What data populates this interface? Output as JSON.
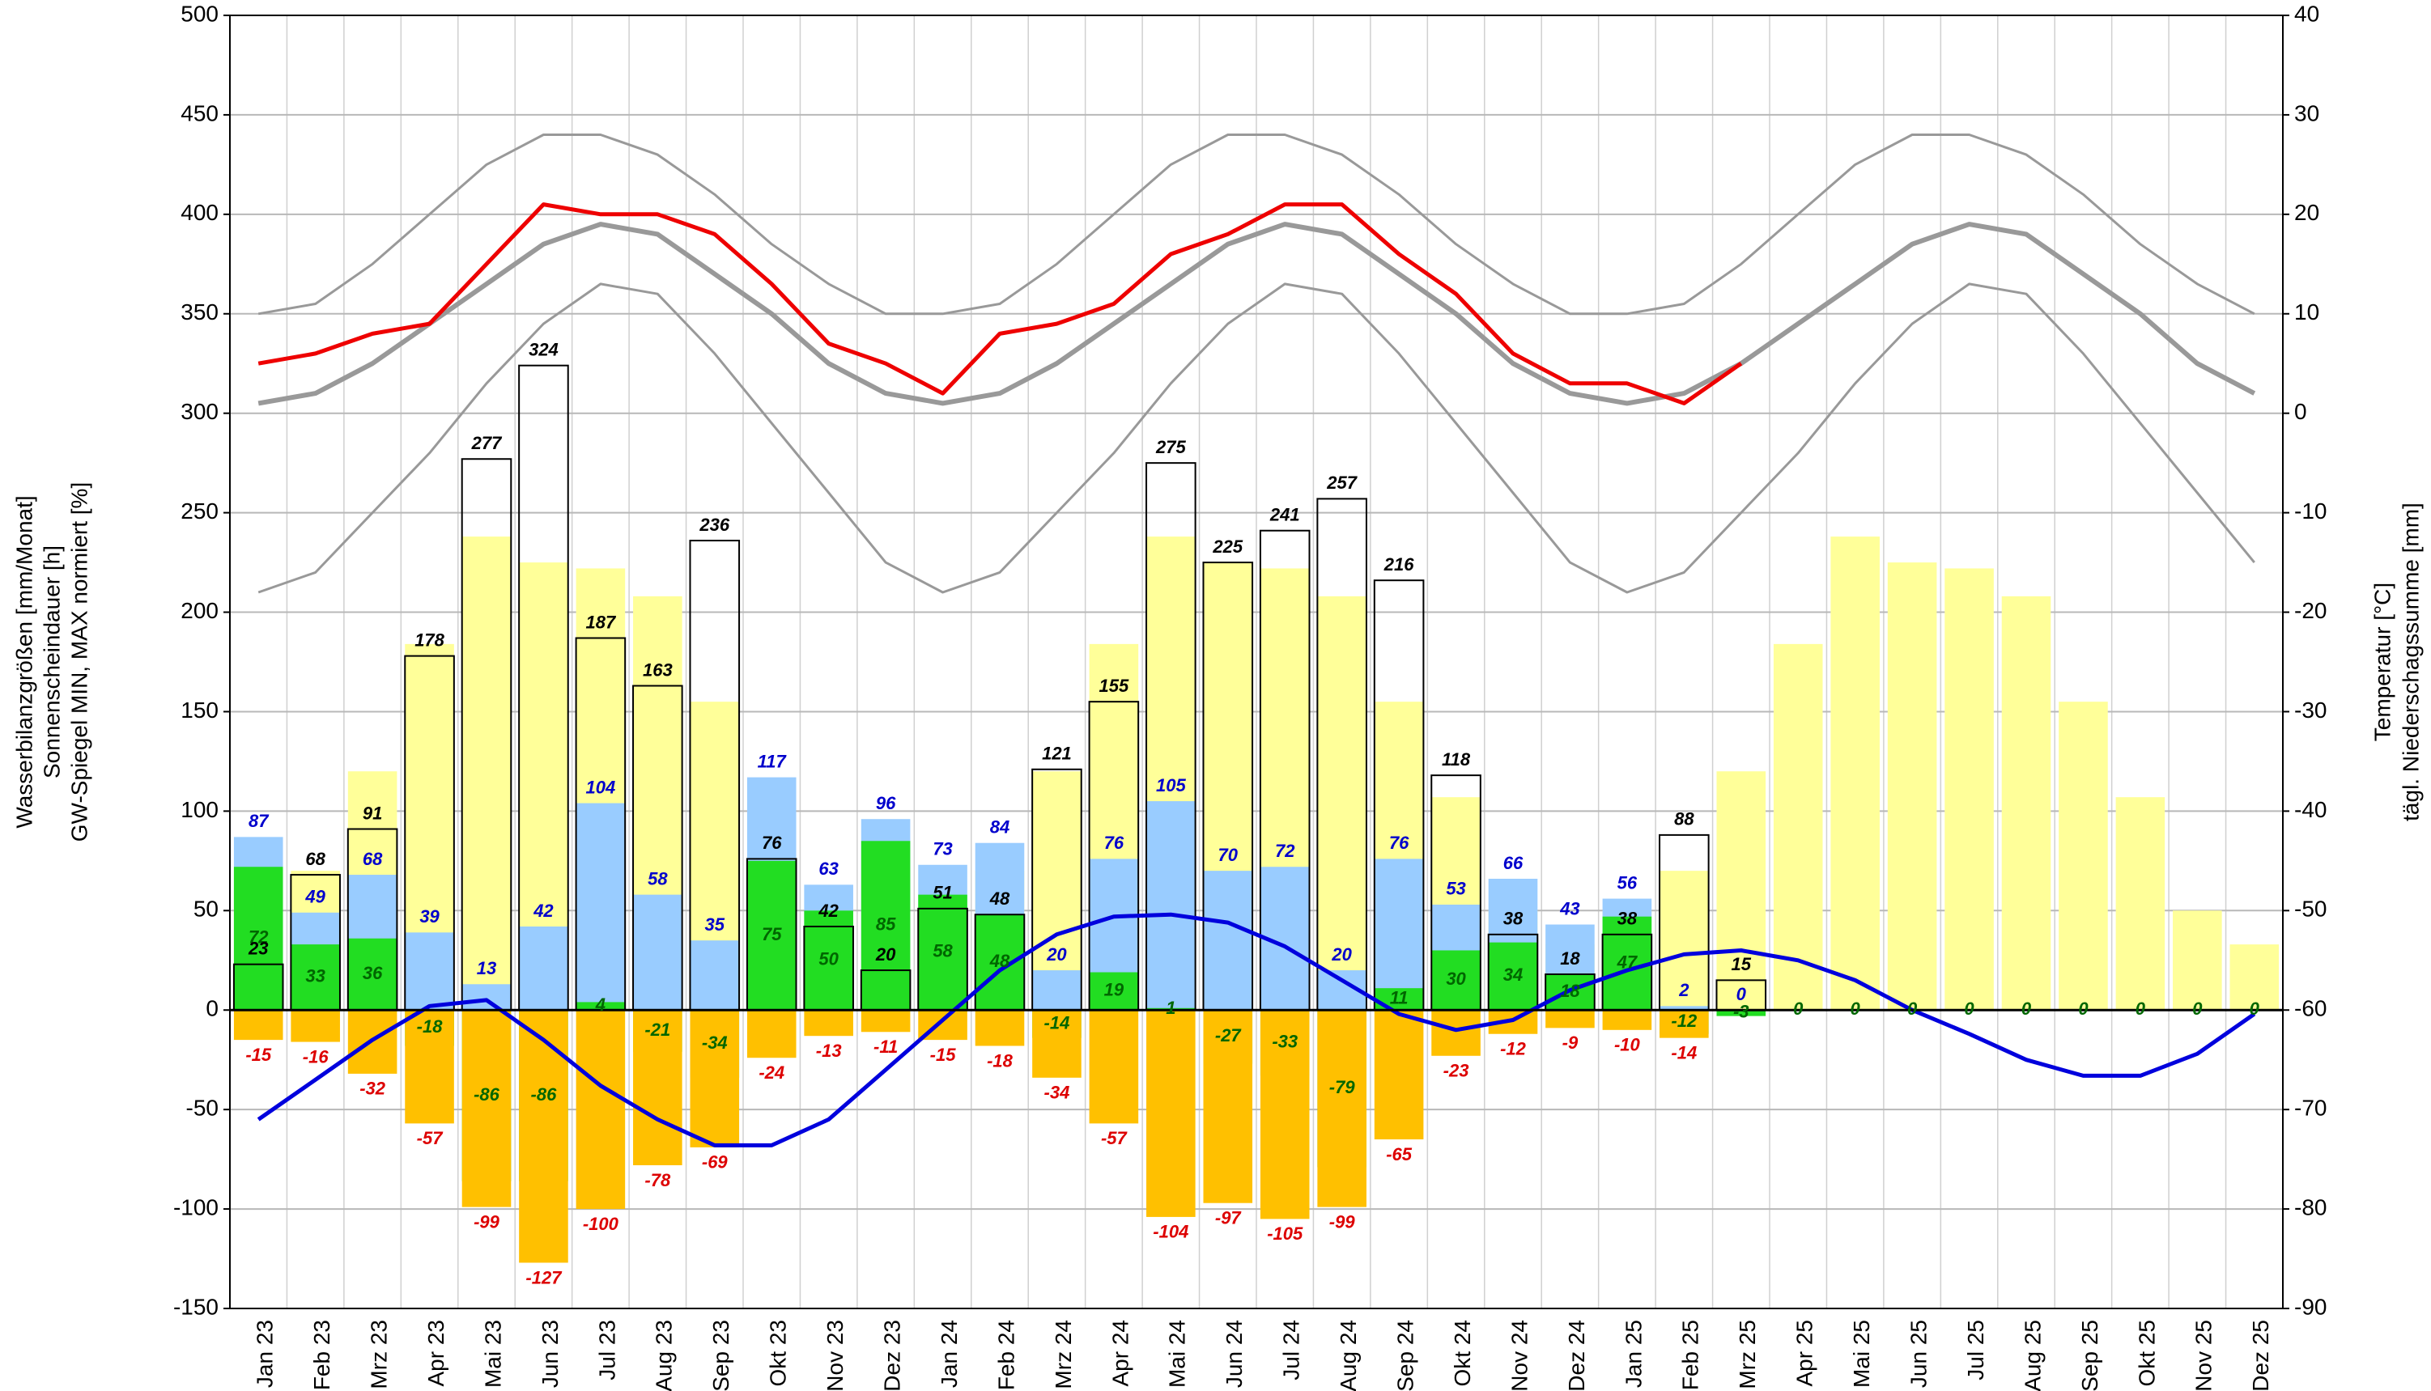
{
  "chart_data": {
    "type": "bar",
    "ylabel": [
      "Wasserbilanzgrößen [mm/Monat]",
      "Sonnenscheindauer [h]",
      "GW-Spiegel MIN, MAX normiert [%]"
    ],
    "y2label": [
      "Temperatur [°C]",
      "tägl. Niederschagssumme [mm]"
    ],
    "categories": [
      "Jan 23",
      "Feb 23",
      "Mrz 23",
      "Apr 23",
      "Mai 23",
      "Jun 23",
      "Jul 23",
      "Aug 23",
      "Sep 23",
      "Okt 23",
      "Nov 23",
      "Dez 23",
      "Jan 24",
      "Feb 24",
      "Mrz 24",
      "Apr 24",
      "Mai 24",
      "Jun 24",
      "Jul 24",
      "Aug 24",
      "Sep 24",
      "Okt 24",
      "Nov 24",
      "Dez 24",
      "Jan 25",
      "Feb 25",
      "Mrz 25",
      "Apr 25",
      "Mai 25",
      "Jun 25",
      "Jul 25",
      "Aug 25",
      "Sep 25",
      "Okt 25",
      "Nov 25",
      "Dez 25"
    ],
    "ylim": [
      -150,
      500
    ],
    "yticks": [
      -150,
      -100,
      -50,
      0,
      50,
      100,
      150,
      200,
      250,
      300,
      350,
      400,
      450,
      500
    ],
    "y2lim": [
      -90,
      40
    ],
    "y2ticks": [
      -90,
      -80,
      -70,
      -60,
      -50,
      -40,
      -30,
      -20,
      -10,
      0,
      10,
      20,
      30,
      40
    ],
    "grid": true,
    "series": [
      {
        "style": "bar",
        "color": "#ffff99",
        "values": [
          60,
          70,
          120,
          184,
          238,
          225,
          222,
          208,
          155,
          75,
          40,
          30,
          50,
          70,
          120,
          184,
          238,
          225,
          222,
          208,
          155,
          107,
          50,
          33,
          50,
          70,
          120,
          184,
          238,
          225,
          222,
          208,
          155,
          107,
          50,
          33
        ]
      },
      {
        "style": "bar",
        "color": "#99ccff",
        "label_color": "#0000cc",
        "label_position": "top",
        "values": [
          87,
          49,
          68,
          39,
          13,
          42,
          104,
          58,
          35,
          117,
          63,
          96,
          73,
          84,
          20,
          76,
          105,
          70,
          72,
          20,
          76,
          53,
          66,
          43,
          56,
          2,
          0,
          null,
          null,
          null,
          null,
          null,
          null,
          null,
          null,
          null
        ]
      },
      {
        "style": "bar",
        "color": "#22dd22",
        "label_color": "#006600",
        "label_position": "inside",
        "values": [
          72,
          33,
          36,
          -18,
          -86,
          -86,
          4,
          -21,
          -34,
          75,
          50,
          85,
          58,
          48,
          -14,
          19,
          1,
          -27,
          -33,
          -79,
          11,
          30,
          34,
          18,
          47,
          -12,
          -3,
          0,
          0,
          0,
          0,
          0,
          0,
          0,
          0,
          0
        ]
      },
      {
        "style": "bar",
        "color": "#ffc000",
        "label_color": "#dd0000",
        "label_position": "below",
        "values": [
          -15,
          -16,
          -32,
          -57,
          -99,
          -127,
          -100,
          -78,
          -69,
          -24,
          -13,
          -11,
          -15,
          -18,
          -34,
          -57,
          -104,
          -97,
          -105,
          -99,
          -65,
          -23,
          -12,
          -9,
          -10,
          -14,
          null,
          null,
          null,
          null,
          null,
          null,
          null,
          null,
          null,
          null
        ]
      },
      {
        "style": "outline",
        "color": "#000000",
        "label_color": "#000000",
        "label_position": "top",
        "values": [
          23,
          68,
          91,
          178,
          277,
          324,
          187,
          163,
          236,
          76,
          42,
          20,
          51,
          48,
          121,
          155,
          275,
          225,
          241,
          257,
          216,
          118,
          38,
          18,
          38,
          88,
          15,
          null,
          null,
          null,
          null,
          null,
          null,
          null,
          null,
          null
        ]
      },
      {
        "style": "line",
        "axis": "y2",
        "color": "#999999",
        "width": 3,
        "values": [
          10,
          11,
          15,
          20,
          25,
          28,
          28,
          26,
          22,
          17,
          13,
          10,
          10,
          11,
          15,
          20,
          25,
          28,
          28,
          26,
          22,
          17,
          13,
          10,
          10,
          11,
          15,
          20,
          25,
          28,
          28,
          26,
          22,
          17,
          13,
          10
        ]
      },
      {
        "style": "line",
        "axis": "y2",
        "color": "#999999",
        "width": 3,
        "values": [
          -18,
          -16,
          -10,
          -4,
          3,
          9,
          13,
          12,
          6,
          -1,
          -8,
          -15,
          -18,
          -16,
          -10,
          -4,
          3,
          9,
          13,
          12,
          6,
          -1,
          -8,
          -15,
          -18,
          -16,
          -10,
          -4,
          3,
          9,
          13,
          12,
          6,
          -1,
          -8,
          -15
        ]
      },
      {
        "style": "line",
        "axis": "y2",
        "color": "#999999",
        "width": 6,
        "values": [
          1,
          2,
          5,
          9,
          13,
          17,
          19,
          18,
          14,
          10,
          5,
          2,
          1,
          2,
          5,
          9,
          13,
          17,
          19,
          18,
          14,
          10,
          5,
          2,
          1,
          2,
          5,
          9,
          13,
          17,
          19,
          18,
          14,
          10,
          5,
          2
        ]
      },
      {
        "style": "line",
        "axis": "y2",
        "color": "#ee0000",
        "width": 5,
        "values": [
          5,
          6,
          8,
          9,
          15,
          21,
          20,
          20,
          18,
          13,
          7,
          5,
          2,
          8,
          9,
          11,
          16,
          18,
          21,
          21,
          16,
          12,
          6,
          3,
          3,
          1,
          5,
          null,
          null,
          null,
          null,
          null,
          null,
          null,
          null,
          null
        ]
      },
      {
        "style": "line",
        "color": "#0000dd",
        "width": 5,
        "values": [
          -55,
          -35,
          -15,
          2,
          5,
          -15,
          -38,
          -55,
          -68,
          -68,
          -55,
          -30,
          -5,
          20,
          38,
          47,
          48,
          44,
          32,
          15,
          -2,
          -10,
          -5,
          10,
          20,
          28,
          30,
          25,
          15,
          0,
          -12,
          -25,
          -33,
          -33,
          -22,
          -2
        ]
      }
    ]
  }
}
